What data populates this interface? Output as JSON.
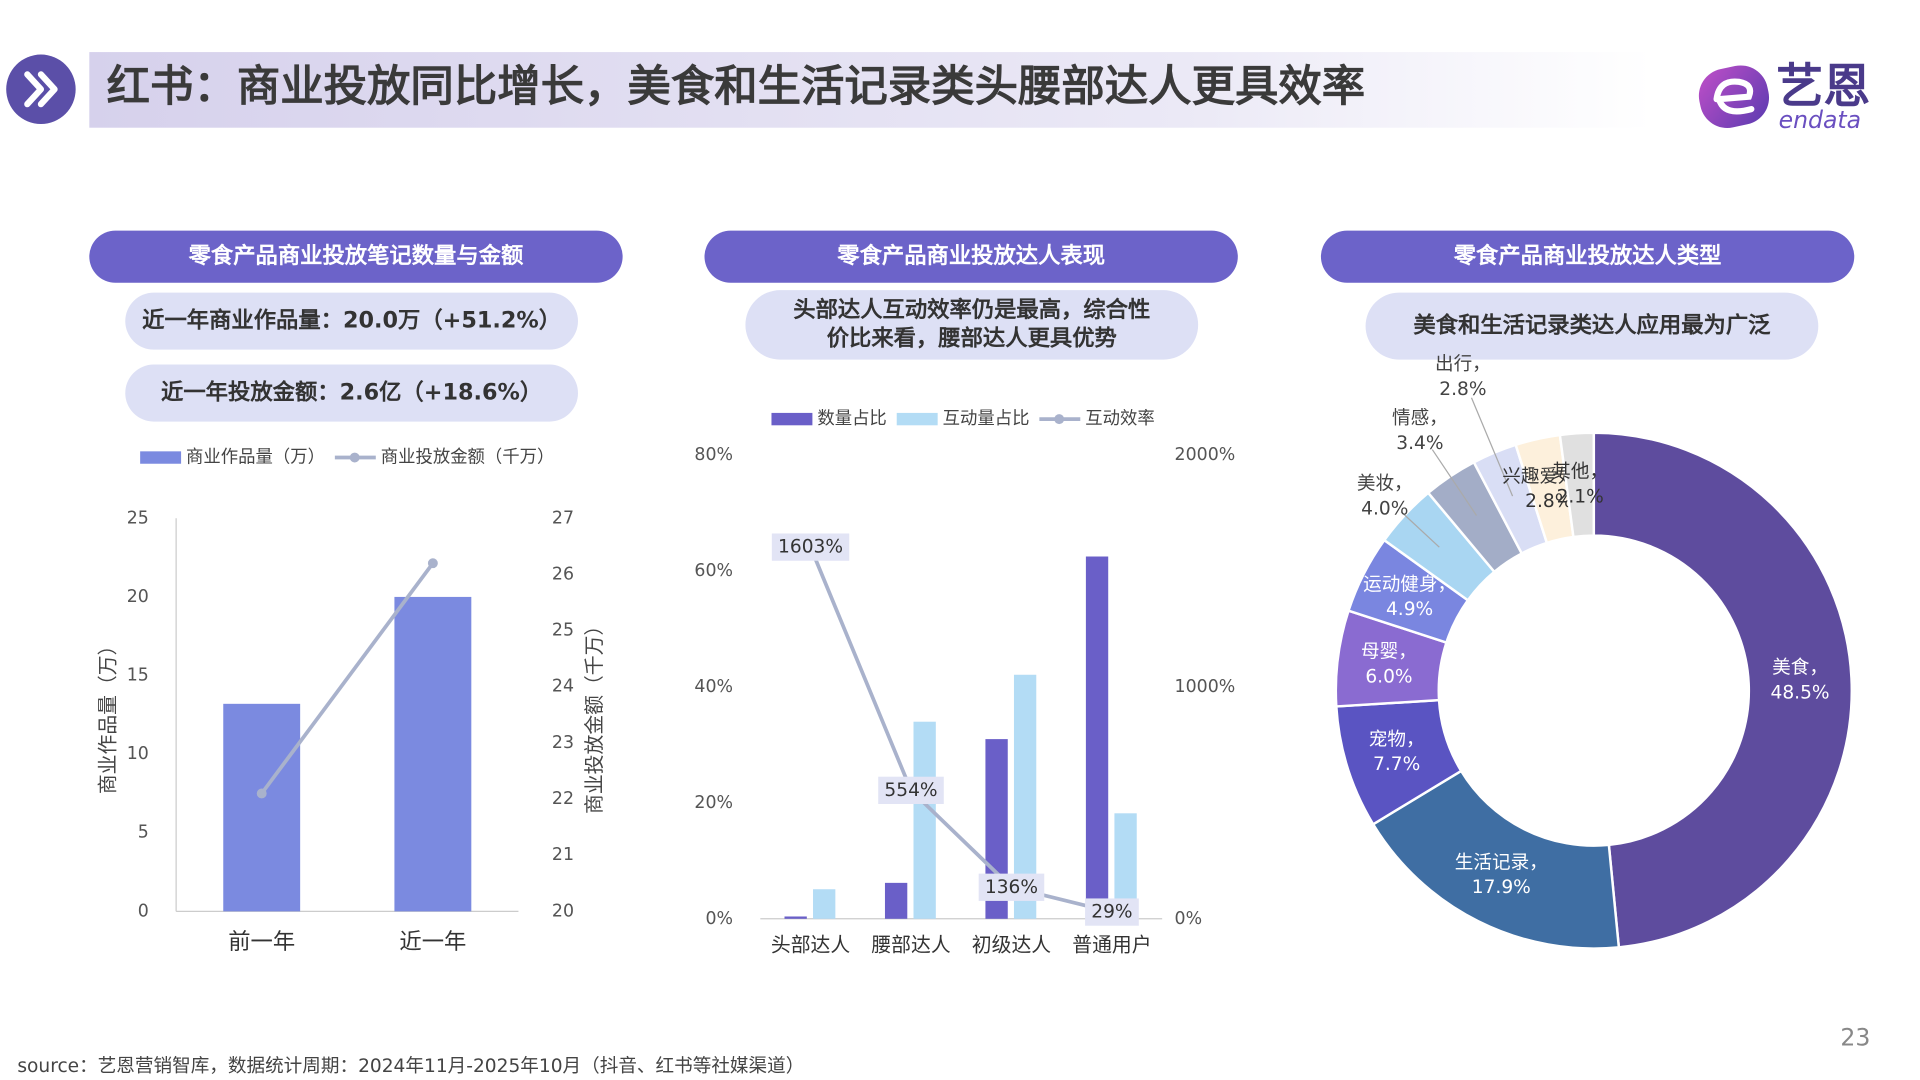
{
  "header": {
    "title": "红书：商业投放同比增长，美食和生活记录类头腰部达人更具效率"
  },
  "logo": {
    "name": "艺恩",
    "sub": "endata"
  },
  "source": "source：艺恩营销智库，数据统计周期：2024年11月-2025年10月（抖音、红书等社媒渠道）",
  "page_number": "23",
  "chart_data": [
    {
      "type": "bar-line",
      "title": "零食产品商业投放笔记数量与金额",
      "notes": [
        "近一年商业作品量：20.0万（+51.2%）",
        "近一年投放金额：2.6亿（+18.6%）"
      ],
      "categories": [
        "前一年",
        "近一年"
      ],
      "series": [
        {
          "name": "商业作品量（万）",
          "type": "bar",
          "color": "#7b8ae0",
          "values": [
            13.2,
            20.0
          ]
        },
        {
          "name": "商业投放金额（千万）",
          "type": "line",
          "axis": "y2",
          "color": "#a9b2cc",
          "values": [
            22.1,
            26.2
          ]
        }
      ],
      "ylabel": "商业作品量（万）",
      "y2label": "商业投放金额（千万）",
      "ylim": [
        0,
        25
      ],
      "yticks": [
        0,
        5,
        10,
        15,
        20,
        25
      ],
      "y2lim": [
        20,
        27
      ],
      "y2ticks": [
        20,
        21,
        22,
        23,
        24,
        25,
        26,
        27
      ]
    },
    {
      "type": "bar-line",
      "title": "零食产品商业投放达人表现",
      "notes": [
        "头部达人互动效率仍是最高，综合性",
        "价比来看，腰部达人更具优势"
      ],
      "categories": [
        "头部达人",
        "腰部达人",
        "初级达人",
        "普通用户"
      ],
      "series": [
        {
          "name": "数量占比",
          "type": "bar",
          "color": "#6a5fc8",
          "values": [
            0.4,
            6.2,
            31.0,
            62.5
          ]
        },
        {
          "name": "互动量占比",
          "type": "bar",
          "color": "#b3dcf5",
          "values": [
            5.1,
            34.0,
            42.1,
            18.2
          ]
        },
        {
          "name": "互动效率",
          "type": "line",
          "axis": "y2",
          "color": "#a9b2cc",
          "values": [
            1603,
            554,
            136,
            29
          ],
          "value_labels": [
            "1603%",
            "554%",
            "136%",
            "29%"
          ]
        }
      ],
      "ylim": [
        0,
        80
      ],
      "yticks": [
        {
          "value": 0,
          "label": "0%"
        },
        {
          "value": 20,
          "label": "20%"
        },
        {
          "value": 40,
          "label": "40%"
        },
        {
          "value": 60,
          "label": "60%"
        },
        {
          "value": 80,
          "label": "80%"
        }
      ],
      "y2lim": [
        0,
        2000
      ],
      "y2ticks": [
        {
          "value": 0,
          "label": "0%"
        },
        {
          "value": 1000,
          "label": "1000%"
        },
        {
          "value": 2000,
          "label": "2000%"
        }
      ]
    },
    {
      "type": "donut",
      "title": "零食产品商业投放达人类型",
      "notes": [
        "美食和生活记录类达人应用最为广泛"
      ],
      "categories": [
        "美食，",
        "生活记录，",
        "宠物，",
        "母婴，",
        "运动健身，",
        "美妆，",
        "情感，",
        "出行，",
        "兴趣爱好，",
        "其他，"
      ],
      "values": [
        48.5,
        17.9,
        7.7,
        6.0,
        4.9,
        4.0,
        3.4,
        2.8,
        2.8,
        2.1
      ],
      "value_labels": [
        "48.5%",
        "17.9%",
        "7.7%",
        "6.0%",
        "4.9%",
        "4.0%",
        "3.4%",
        "2.8%",
        "2.8%",
        "2.1%"
      ],
      "colors": [
        "#5e4c9e",
        "#3f6ea3",
        "#5a54c2",
        "#8a6bd1",
        "#7a86e0",
        "#a9d6f2",
        "#a3adc7",
        "#d9def5",
        "#fdf0dc",
        "#e0e0e0"
      ]
    }
  ]
}
